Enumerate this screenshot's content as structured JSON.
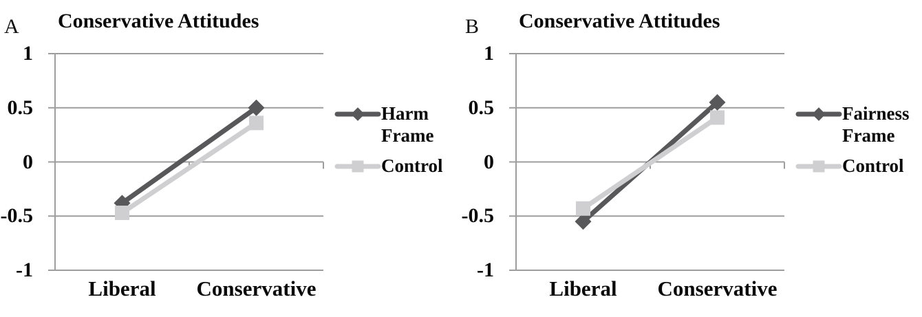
{
  "colors": {
    "dark_series": "#58585a",
    "light_series": "#cfcfd1",
    "grid": "#9d9d9d",
    "text": "#0a0a0a",
    "background": "#ffffff"
  },
  "chart_data": [
    {
      "type": "line",
      "panel_label": "A",
      "title": "Conservative Attitudes",
      "xlabel": "",
      "ylabel": "",
      "categories": [
        "Liberal",
        "Conservative"
      ],
      "series": [
        {
          "name": "Harm Frame",
          "values": [
            -0.38,
            0.5
          ],
          "marker": "diamond",
          "color": "#58585a"
        },
        {
          "name": "Control",
          "values": [
            -0.47,
            0.36
          ],
          "marker": "square",
          "color": "#cfcfd1"
        }
      ],
      "ylim": [
        -1,
        1
      ],
      "y_ticks": [
        {
          "value": 1,
          "label": "1"
        },
        {
          "value": 0.5,
          "label": "0.5"
        },
        {
          "value": 0,
          "label": "0"
        },
        {
          "value": -0.5,
          "label": "-0.5"
        },
        {
          "value": -1,
          "label": "-1"
        }
      ],
      "grid": true,
      "legend_position": "right"
    },
    {
      "type": "line",
      "panel_label": "B",
      "title": "Conservative Attitudes",
      "xlabel": "",
      "ylabel": "",
      "categories": [
        "Liberal",
        "Conservative"
      ],
      "series": [
        {
          "name": "Fairness Frame",
          "values": [
            -0.55,
            0.55
          ],
          "marker": "diamond",
          "color": "#58585a"
        },
        {
          "name": "Control",
          "values": [
            -0.43,
            0.41
          ],
          "marker": "square",
          "color": "#cfcfd1"
        }
      ],
      "ylim": [
        -1,
        1
      ],
      "y_ticks": [
        {
          "value": 1,
          "label": "1"
        },
        {
          "value": 0.5,
          "label": "0.5"
        },
        {
          "value": 0,
          "label": "0"
        },
        {
          "value": -0.5,
          "label": "-0.5"
        },
        {
          "value": -1,
          "label": "-1"
        }
      ],
      "grid": true,
      "legend_position": "right"
    }
  ]
}
